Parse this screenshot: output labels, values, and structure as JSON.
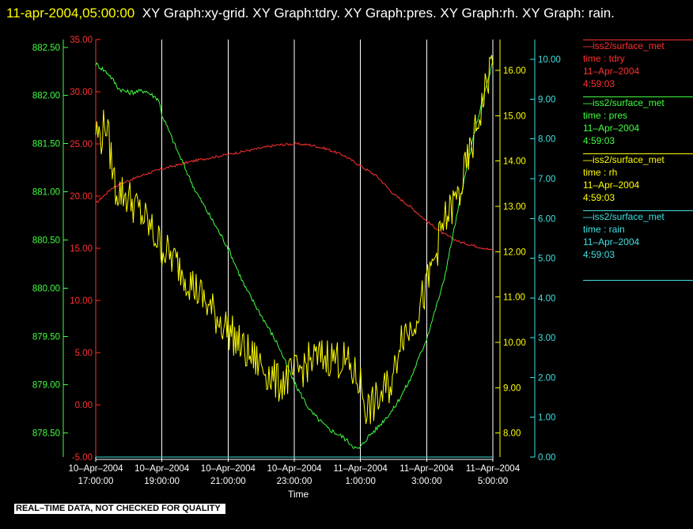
{
  "title": {
    "timestamp": "11-apr-2004,05:00:00",
    "text": "XY Graph:xy-grid.  XY Graph:tdry.  XY Graph:pres.  XY Graph:rh.  XY Graph: rain."
  },
  "footer": {
    "quality_note": "REAL–TIME DATA, NOT CHECKED FOR QUALITY"
  },
  "legend": [
    {
      "name": "—iss2/surface_met",
      "var": "time : tdry",
      "date": "11–Apr–2004",
      "time": "4:59:03",
      "color": "#ff3030"
    },
    {
      "name": "—iss2/surface_met",
      "var": "time : pres",
      "date": "11–Apr–2004",
      "time": "4:59:03",
      "color": "#40ff40"
    },
    {
      "name": "—iss2/surface_met",
      "var": "time : rh",
      "date": "11–Apr–2004",
      "time": "4:59:03",
      "color": "#ffff00"
    },
    {
      "name": "—iss2/surface_met",
      "var": "time : rain",
      "date": "11–Apr–2004",
      "time": "4:59:03",
      "color": "#40e0e0"
    }
  ],
  "chart_data": {
    "type": "line",
    "xlabel": "Time",
    "x_ticks": [
      "10–Apr–2004\n17:00:00",
      "10–Apr–2004\n19:00:00",
      "10–Apr–2004\n21:00:00",
      "10–Apr–2004\n23:00:00",
      "11–Apr–2004\n1:00:00",
      "11–Apr–2004\n3:00:00",
      "11–Apr–2004\n5:00:00"
    ],
    "x_tick_hours": [
      0,
      2,
      4,
      6,
      8,
      10,
      12
    ],
    "xlim_hours": [
      0,
      12
    ],
    "grid": "vertical",
    "axes": {
      "tdry": {
        "ylim": [
          -5,
          35
        ],
        "ticks": [
          "-5.00",
          "0.00",
          "5.00",
          "10.00",
          "15.00",
          "20.00",
          "25.00",
          "30.00",
          "35.00"
        ],
        "color": "#ff3030",
        "side": "left-inner"
      },
      "pres": {
        "ylim": [
          878.25,
          882.58
        ],
        "ticks": [
          "878.50",
          "879.00",
          "879.50",
          "880.00",
          "880.50",
          "881.00",
          "881.50",
          "882.00",
          "882.50"
        ],
        "color": "#40ff40",
        "side": "left-outer"
      },
      "rh": {
        "ylim": [
          7.47,
          16.68
        ],
        "ticks": [
          "8.00",
          "9.00",
          "10.00",
          "11.00",
          "12.00",
          "13.00",
          "14.00",
          "15.00",
          "16.00"
        ],
        "color": "#ffff00",
        "side": "right-inner"
      },
      "rain": {
        "ylim": [
          0,
          10.5
        ],
        "ticks": [
          "0.00",
          "1.00",
          "2.00",
          "3.00",
          "4.00",
          "5.00",
          "6.00",
          "7.00",
          "8.00",
          "9.00",
          "10.00"
        ],
        "color": "#40e0e0",
        "side": "right-outer"
      }
    },
    "series": [
      {
        "key": "tdry",
        "color": "#ff3030",
        "x": [
          0,
          0.5,
          1,
          1.5,
          2,
          2.5,
          3,
          3.5,
          4,
          4.5,
          5,
          5.5,
          6,
          6.5,
          7,
          7.5,
          8,
          8.5,
          9,
          9.5,
          10,
          10.5,
          11,
          11.5,
          12
        ],
        "y": [
          19.3,
          20.8,
          21.5,
          22.1,
          22.6,
          23.0,
          23.4,
          23.7,
          24.0,
          24.3,
          24.6,
          24.9,
          25.0,
          24.9,
          24.5,
          23.9,
          22.9,
          21.9,
          20.2,
          19.0,
          17.6,
          16.4,
          15.6,
          15.2,
          14.8
        ]
      },
      {
        "key": "pres",
        "color": "#40ff40",
        "x": [
          0,
          0.4,
          0.7,
          1.0,
          1.5,
          1.9,
          2.0,
          2.5,
          3.0,
          3.5,
          4.0,
          4.5,
          5.0,
          5.5,
          6.0,
          6.5,
          7.0,
          7.5,
          7.9,
          8.0,
          8.2,
          8.5,
          9.0,
          9.5,
          10.0,
          10.5,
          11.0,
          11.5,
          12
        ],
        "y": [
          882.33,
          882.22,
          882.07,
          882.03,
          882.05,
          881.96,
          881.8,
          881.4,
          881.02,
          880.72,
          880.42,
          880.02,
          879.72,
          879.42,
          879.02,
          878.72,
          878.55,
          878.45,
          878.33,
          878.35,
          878.45,
          878.55,
          878.75,
          879.05,
          879.48,
          880.05,
          880.9,
          881.7,
          882.35
        ]
      },
      {
        "key": "rh",
        "color": "#ffff00",
        "x": [
          0,
          0.15,
          0.3,
          0.6,
          1.0,
          1.5,
          2.0,
          2.5,
          3.0,
          3.5,
          4.0,
          4.5,
          5.0,
          5.5,
          6.0,
          6.5,
          7.0,
          7.5,
          8.0,
          8.2,
          8.5,
          9.0,
          9.2,
          9.5,
          10.0,
          10.5,
          11.0,
          11.5,
          12
        ],
        "y": [
          14.7,
          14.5,
          14.9,
          13.4,
          13.2,
          12.7,
          12.1,
          11.7,
          11.2,
          10.7,
          10.3,
          9.8,
          9.5,
          9.1,
          9.3,
          9.6,
          9.7,
          9.6,
          9.1,
          8.5,
          8.7,
          9.2,
          10.2,
          10.3,
          11.2,
          12.6,
          13.3,
          14.7,
          16.3
        ]
      },
      {
        "key": "rain",
        "color": "#40e0e0",
        "x": [
          0,
          12
        ],
        "y": [
          0,
          0
        ]
      }
    ]
  }
}
